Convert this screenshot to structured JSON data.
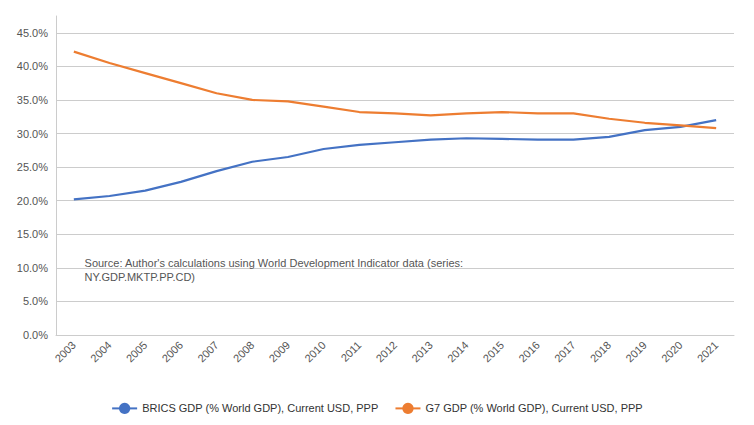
{
  "chart_data": {
    "type": "line",
    "x": [
      2003,
      2004,
      2005,
      2006,
      2007,
      2008,
      2009,
      2010,
      2011,
      2012,
      2013,
      2014,
      2015,
      2016,
      2017,
      2018,
      2019,
      2020,
      2021
    ],
    "series": [
      {
        "name": "BRICS GDP (% World GDP), Current USD, PPP",
        "color": "#4472C4",
        "values": [
          0.202,
          0.207,
          0.215,
          0.228,
          0.244,
          0.258,
          0.265,
          0.277,
          0.283,
          0.287,
          0.291,
          0.293,
          0.292,
          0.291,
          0.291,
          0.295,
          0.305,
          0.31,
          0.32
        ]
      },
      {
        "name": "G7 GDP (% World GDP), Current USD, PPP",
        "color": "#ED7D31",
        "values": [
          0.422,
          0.405,
          0.39,
          0.375,
          0.36,
          0.35,
          0.348,
          0.34,
          0.332,
          0.33,
          0.327,
          0.33,
          0.332,
          0.33,
          0.33,
          0.322,
          0.316,
          0.312,
          0.308
        ]
      }
    ],
    "xlim": [
      2002.5,
      2021.5
    ],
    "xticks": [
      2003,
      2004,
      2005,
      2006,
      2007,
      2008,
      2009,
      2010,
      2011,
      2012,
      2013,
      2014,
      2015,
      2016,
      2017,
      2018,
      2019,
      2020,
      2021
    ],
    "ylim": [
      0.0,
      0.475
    ],
    "yticks": [
      {
        "value": 0.0,
        "label": "0.0%"
      },
      {
        "value": 0.05,
        "label": "5.0%"
      },
      {
        "value": 0.1,
        "label": "10.0%"
      },
      {
        "value": 0.15,
        "label": "15.0%"
      },
      {
        "value": 0.2,
        "label": "20.0%"
      },
      {
        "value": 0.25,
        "label": "25.0%"
      },
      {
        "value": 0.3,
        "label": "30.0%"
      },
      {
        "value": 0.35,
        "label": "35.0%"
      },
      {
        "value": 0.4,
        "label": "40.0%"
      },
      {
        "value": 0.45,
        "label": "45.0%"
      }
    ],
    "annotation": "Source: Author's calculations using World Development Indicator data (series:\nNY.GDP.MKTP.PP.CD)",
    "grid": true,
    "legend": "bottom"
  }
}
